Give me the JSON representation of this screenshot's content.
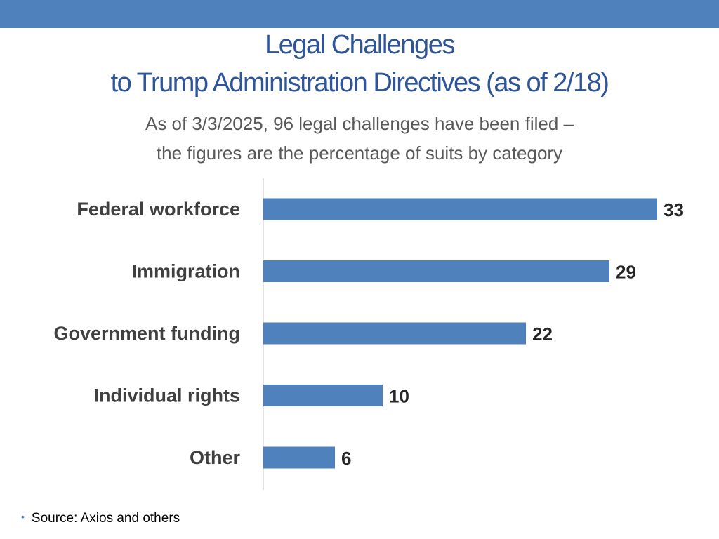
{
  "colors": {
    "accent": "#4f81bd",
    "title": "#2e5597",
    "bar": "#4f81bd",
    "axis": "#d9d9d9"
  },
  "header": {
    "title_line1": "Legal Challenges",
    "title_line2": "to Trump Administration Directives  (as of 2/18)",
    "subtitle_line1": "As of 3/3/2025, 96 legal challenges have been filed –",
    "subtitle_line2": "the figures are the percentage of suits by category"
  },
  "chart_data": {
    "type": "bar",
    "orientation": "horizontal",
    "title": "Legal Challenges to Trump Administration Directives (as of 2/18)",
    "categories": [
      "Federal workforce",
      "Immigration",
      "Government funding",
      "Individual rights",
      "Other"
    ],
    "values": [
      33,
      29,
      22,
      10,
      6
    ],
    "xlabel": "",
    "ylabel": "",
    "xlim": [
      0,
      33
    ],
    "grid": false,
    "data_labels": true
  },
  "footer": {
    "bullet": "•",
    "source": "Source: Axios and others"
  }
}
